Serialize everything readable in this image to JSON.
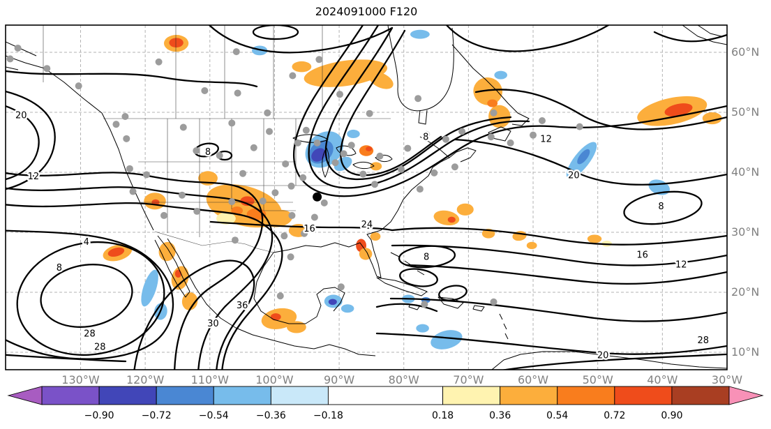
{
  "title": "2024091000 F120",
  "axes": {
    "x_ticks": [
      "130°W",
      "120°W",
      "110°W",
      "100°W",
      "90°W",
      "80°W",
      "70°W",
      "60°W",
      "50°W",
      "40°W",
      "30°W"
    ],
    "y_ticks": [
      "60°N",
      "50°N",
      "40°N",
      "30°N",
      "20°N",
      "10°N"
    ]
  },
  "colorbar": {
    "tick_labels": [
      "−0.90",
      "−0.72",
      "−0.54",
      "−0.36",
      "−0.18",
      "0.18",
      "0.36",
      "0.54",
      "0.72",
      "0.90"
    ],
    "colors": [
      "#A85CC1",
      "#7A52C8",
      "#4146B8",
      "#4A87D3",
      "#77BCEB",
      "#C9E8F9",
      "#FFFFFF",
      "#FFF3B0",
      "#FCAE3C",
      "#F97D1D",
      "#EF4C1B",
      "#A93E22",
      "#F891B7"
    ]
  },
  "chart_data": {
    "type": "contour-map",
    "title": "2024091000 F120",
    "region": "North America and western Atlantic",
    "x_axis": {
      "label": "longitude",
      "ticks_deg_west": [
        130,
        120,
        110,
        100,
        90,
        80,
        70,
        60,
        50,
        40,
        30
      ]
    },
    "y_axis": {
      "label": "latitude",
      "ticks_deg_north": [
        60,
        50,
        40,
        30,
        20,
        10
      ]
    },
    "lon_range": [
      -141.6,
      -30.0
    ],
    "lat_range": [
      7.1,
      64.53
    ],
    "grid": true,
    "legend_position": "bottom horizontal colorbar with arrow extensions",
    "contour_levels_labeled": [
      4,
      8,
      12,
      16,
      20,
      24,
      28,
      30,
      36
    ],
    "shading_boundaries": [
      -1.08,
      -0.9,
      -0.72,
      -0.54,
      -0.36,
      -0.18,
      0.18,
      0.36,
      0.54,
      0.72,
      0.9,
      1.08
    ],
    "contour_labels": [
      {
        "v": "20",
        "lon": -139.2,
        "lat": 49.5
      },
      {
        "v": "12",
        "lon": -137.3,
        "lat": 39.3
      },
      {
        "v": "4",
        "lon": -129.1,
        "lat": 28.4
      },
      {
        "v": "8",
        "lon": -133.3,
        "lat": 24.1
      },
      {
        "v": "28",
        "lon": -128.6,
        "lat": 13.1
      },
      {
        "v": "28",
        "lon": -127.0,
        "lat": 10.9
      },
      {
        "v": "8",
        "lon": -110.3,
        "lat": 43.4
      },
      {
        "v": "36",
        "lon": -105.0,
        "lat": 17.8
      },
      {
        "v": "30",
        "lon": -109.5,
        "lat": 14.8
      },
      {
        "v": "16",
        "lon": -94.6,
        "lat": 30.6
      },
      {
        "v": "24",
        "lon": -85.7,
        "lat": 31.3
      },
      {
        "v": "8",
        "lon": -76.5,
        "lat": 25.9
      },
      {
        "v": "8",
        "lon": -76.6,
        "lat": 45.9
      },
      {
        "v": "12",
        "lon": -58.0,
        "lat": 45.5
      },
      {
        "v": "20",
        "lon": -53.7,
        "lat": 39.5
      },
      {
        "v": "8",
        "lon": -40.2,
        "lat": 34.3
      },
      {
        "v": "16",
        "lon": -43.1,
        "lat": 26.2
      },
      {
        "v": "12",
        "lon": -37.1,
        "lat": 24.6
      },
      {
        "v": "20",
        "lon": -49.2,
        "lat": 9.5
      },
      {
        "v": "28",
        "lon": -33.7,
        "lat": 12.0
      }
    ],
    "stations_gray": [
      [
        -140.9,
        58.9
      ],
      [
        -139.7,
        60.7
      ],
      [
        -135.2,
        57.3
      ],
      [
        -130.3,
        54.4
      ],
      [
        -123.1,
        49.3
      ],
      [
        -124.5,
        48.0
      ],
      [
        -122.9,
        45.6
      ],
      [
        -122.4,
        40.6
      ],
      [
        -119.8,
        39.6
      ],
      [
        -121.9,
        36.8
      ],
      [
        -117.1,
        32.8
      ],
      [
        -114.3,
        36.2
      ],
      [
        -112.0,
        33.5
      ],
      [
        -106.6,
        35.1
      ],
      [
        -104.9,
        39.8
      ],
      [
        -108.5,
        42.8
      ],
      [
        -112.1,
        43.6
      ],
      [
        -114.1,
        47.5
      ],
      [
        -106.6,
        48.2
      ],
      [
        -110.8,
        53.6
      ],
      [
        -105.7,
        53.2
      ],
      [
        -101.1,
        49.9
      ],
      [
        -100.8,
        46.8
      ],
      [
        -103.2,
        44.1
      ],
      [
        -98.3,
        41.4
      ],
      [
        -96.4,
        44.9
      ],
      [
        -95.1,
        47.0
      ],
      [
        -97.4,
        37.7
      ],
      [
        -99.9,
        36.6
      ],
      [
        -101.8,
        35.2
      ],
      [
        -97.3,
        32.8
      ],
      [
        -98.5,
        29.4
      ],
      [
        -97.5,
        25.9
      ],
      [
        -93.8,
        32.5
      ],
      [
        -95.4,
        29.8
      ],
      [
        -92.3,
        34.9
      ],
      [
        -95.6,
        39.1
      ],
      [
        -93.4,
        44.9
      ],
      [
        -90.6,
        41.6
      ],
      [
        -89.3,
        43.1
      ],
      [
        -88.1,
        44.5
      ],
      [
        -86.3,
        39.7
      ],
      [
        -83.7,
        42.7
      ],
      [
        -84.5,
        38.0
      ],
      [
        -80.4,
        40.5
      ],
      [
        -79.4,
        44.0
      ],
      [
        -76.5,
        46.3
      ],
      [
        -73.5,
        45.5
      ],
      [
        -71.0,
        46.8
      ],
      [
        -66.5,
        45.9
      ],
      [
        -63.5,
        44.9
      ],
      [
        -60.0,
        46.2
      ],
      [
        -52.8,
        47.6
      ],
      [
        -58.6,
        48.6
      ],
      [
        -66.1,
        49.9
      ],
      [
        -77.8,
        52.3
      ],
      [
        -85.3,
        49.8
      ],
      [
        -89.9,
        53.0
      ],
      [
        -97.2,
        56.1
      ],
      [
        -93.1,
        58.8
      ],
      [
        -105.9,
        60.1
      ],
      [
        -117.9,
        58.4
      ],
      [
        -77.5,
        37.2
      ],
      [
        -75.3,
        39.9
      ],
      [
        -72.1,
        40.9
      ],
      [
        -106.1,
        28.7
      ],
      [
        -99.1,
        19.4
      ],
      [
        -89.7,
        20.9
      ],
      [
        -76.8,
        18.0
      ],
      [
        -66.1,
        18.4
      ]
    ],
    "station_black": [
      -93.4,
      35.9
    ],
    "anomaly_patches": [
      {
        "lon": -89.0,
        "lat": 56.5,
        "w": 13,
        "h": 4.2,
        "rot": -8,
        "c": 8
      },
      {
        "lon": -83.5,
        "lat": 55.3,
        "w": 4,
        "h": 2.4,
        "rot": 25,
        "c": 8
      },
      {
        "lon": -95.8,
        "lat": 57.6,
        "w": 3,
        "h": 1.8,
        "rot": 0,
        "c": 8
      },
      {
        "lon": -115.2,
        "lat": 61.5,
        "w": 3.8,
        "h": 2.8,
        "rot": 0,
        "c": 8
      },
      {
        "lon": -115.2,
        "lat": 61.6,
        "w": 2.2,
        "h": 1.6,
        "rot": 0,
        "c": 10
      },
      {
        "lon": -102.3,
        "lat": 60.3,
        "w": 2.4,
        "h": 1.6,
        "rot": 0,
        "c": 4
      },
      {
        "lon": -77.5,
        "lat": 63.0,
        "w": 3,
        "h": 1.5,
        "rot": 0,
        "c": 4
      },
      {
        "lon": -65.0,
        "lat": 56.2,
        "w": 2,
        "h": 1.4,
        "rot": 0,
        "c": 4
      },
      {
        "lon": -67.0,
        "lat": 53.5,
        "w": 4.5,
        "h": 4.6,
        "rot": 15,
        "c": 8
      },
      {
        "lon": -65.2,
        "lat": 49.3,
        "w": 3.4,
        "h": 3.8,
        "rot": -10,
        "c": 8
      },
      {
        "lon": -66.3,
        "lat": 51.5,
        "w": 1.6,
        "h": 1.3,
        "rot": 0,
        "c": 9
      },
      {
        "lon": -38.5,
        "lat": 50.2,
        "w": 11,
        "h": 4.4,
        "rot": -12,
        "c": 8
      },
      {
        "lon": -37.5,
        "lat": 50.4,
        "w": 4.4,
        "h": 2,
        "rot": -12,
        "c": 10
      },
      {
        "lon": -32.3,
        "lat": 49.0,
        "w": 3,
        "h": 2,
        "rot": 0,
        "c": 8
      },
      {
        "lon": -52.5,
        "lat": 42.0,
        "w": 2.4,
        "h": 7.5,
        "rot": 38,
        "c": 4
      },
      {
        "lon": -52.2,
        "lat": 42.6,
        "w": 1.2,
        "h": 3,
        "rot": 38,
        "c": 3
      },
      {
        "lon": -40.5,
        "lat": 37.5,
        "w": 3.4,
        "h": 2.4,
        "rot": 20,
        "c": 4
      },
      {
        "lon": -92.3,
        "lat": 43.8,
        "w": 6.4,
        "h": 5.4,
        "rot": -40,
        "c": 4
      },
      {
        "lon": -92.8,
        "lat": 43.4,
        "w": 4.2,
        "h": 3.4,
        "rot": -40,
        "c": 3
      },
      {
        "lon": -93.2,
        "lat": 42.9,
        "w": 2.4,
        "h": 2,
        "rot": -40,
        "c": 2
      },
      {
        "lon": -89.4,
        "lat": 41.4,
        "w": 3,
        "h": 2,
        "rot": -30,
        "c": 4
      },
      {
        "lon": -87.8,
        "lat": 46.4,
        "w": 2,
        "h": 1.4,
        "rot": 0,
        "c": 4
      },
      {
        "lon": -85.8,
        "lat": 43.6,
        "w": 2.2,
        "h": 1.8,
        "rot": 0,
        "c": 9
      },
      {
        "lon": -85.4,
        "lat": 43.9,
        "w": 1,
        "h": 0.8,
        "rot": 0,
        "c": 10
      },
      {
        "lon": -84.3,
        "lat": 41.0,
        "w": 1.8,
        "h": 1.4,
        "rot": 0,
        "c": 8
      },
      {
        "lon": -104.7,
        "lat": 34.4,
        "w": 12,
        "h": 6.6,
        "rot": 15,
        "c": 8
      },
      {
        "lon": -104.2,
        "lat": 35.2,
        "w": 2.2,
        "h": 1.6,
        "rot": 0,
        "c": 10
      },
      {
        "lon": -105.8,
        "lat": 33.6,
        "w": 1.8,
        "h": 1.4,
        "rot": 0,
        "c": 9
      },
      {
        "lon": -102.8,
        "lat": 33.0,
        "w": 3,
        "h": 2,
        "rot": 0,
        "c": 9
      },
      {
        "lon": -107.5,
        "lat": 32.3,
        "w": 3,
        "h": 2,
        "rot": 0,
        "c": 7
      },
      {
        "lon": -99.4,
        "lat": 32.3,
        "w": 4.4,
        "h": 2.8,
        "rot": -10,
        "c": 8
      },
      {
        "lon": -96.3,
        "lat": 30.3,
        "w": 3,
        "h": 2.2,
        "rot": 0,
        "c": 8
      },
      {
        "lon": -110.3,
        "lat": 39.0,
        "w": 3,
        "h": 2.4,
        "rot": 0,
        "c": 8
      },
      {
        "lon": -118.5,
        "lat": 35.2,
        "w": 3.4,
        "h": 2.8,
        "rot": 0,
        "c": 8
      },
      {
        "lon": -118.4,
        "lat": 35.0,
        "w": 1.2,
        "h": 1,
        "rot": 0,
        "c": 10
      },
      {
        "lon": -124.3,
        "lat": 26.6,
        "w": 4.6,
        "h": 2.6,
        "rot": -15,
        "c": 8
      },
      {
        "lon": -124.5,
        "lat": 26.7,
        "w": 2.6,
        "h": 1.4,
        "rot": -15,
        "c": 10
      },
      {
        "lon": -119.3,
        "lat": 20.7,
        "w": 2,
        "h": 6.4,
        "rot": 18,
        "c": 4
      },
      {
        "lon": -117.6,
        "lat": 16.8,
        "w": 2,
        "h": 2.8,
        "rot": 8,
        "c": 4
      },
      {
        "lon": -116.6,
        "lat": 26.8,
        "w": 2.6,
        "h": 3.2,
        "rot": 10,
        "c": 8
      },
      {
        "lon": -114.6,
        "lat": 22.4,
        "w": 2.6,
        "h": 4,
        "rot": 15,
        "c": 8
      },
      {
        "lon": -114.9,
        "lat": 23.1,
        "w": 1,
        "h": 1.3,
        "rot": 0,
        "c": 10
      },
      {
        "lon": -113.1,
        "lat": 18.5,
        "w": 2.4,
        "h": 3,
        "rot": 10,
        "c": 8
      },
      {
        "lon": -99.3,
        "lat": 15.6,
        "w": 5.5,
        "h": 3.4,
        "rot": -10,
        "c": 8
      },
      {
        "lon": -99.8,
        "lat": 15.9,
        "w": 1.6,
        "h": 1.2,
        "rot": 0,
        "c": 10
      },
      {
        "lon": -96.6,
        "lat": 14.2,
        "w": 3,
        "h": 2,
        "rot": 0,
        "c": 8
      },
      {
        "lon": -90.9,
        "lat": 18.5,
        "w": 2.8,
        "h": 2.2,
        "rot": 0,
        "c": 4
      },
      {
        "lon": -91.0,
        "lat": 18.4,
        "w": 1.3,
        "h": 1,
        "rot": 0,
        "c": 2
      },
      {
        "lon": -88.7,
        "lat": 17.3,
        "w": 2,
        "h": 1.4,
        "rot": 0,
        "c": 4
      },
      {
        "lon": -86.6,
        "lat": 27.8,
        "w": 1.6,
        "h": 2.2,
        "rot": 0,
        "c": 10
      },
      {
        "lon": -85.9,
        "lat": 26.4,
        "w": 2,
        "h": 2,
        "rot": 0,
        "c": 8
      },
      {
        "lon": -84.4,
        "lat": 29.3,
        "w": 1.6,
        "h": 1.4,
        "rot": 0,
        "c": 8
      },
      {
        "lon": -73.4,
        "lat": 32.4,
        "w": 4,
        "h": 2.4,
        "rot": 10,
        "c": 8
      },
      {
        "lon": -70.5,
        "lat": 33.8,
        "w": 2.6,
        "h": 2,
        "rot": 0,
        "c": 8
      },
      {
        "lon": -72.6,
        "lat": 32.1,
        "w": 1.2,
        "h": 1,
        "rot": 0,
        "c": 10
      },
      {
        "lon": -66.9,
        "lat": 29.8,
        "w": 2,
        "h": 1.6,
        "rot": 0,
        "c": 8
      },
      {
        "lon": -62.1,
        "lat": 29.4,
        "w": 2.2,
        "h": 1.6,
        "rot": -10,
        "c": 8
      },
      {
        "lon": -60.2,
        "lat": 27.8,
        "w": 1.6,
        "h": 1.2,
        "rot": 0,
        "c": 8
      },
      {
        "lon": -50.5,
        "lat": 28.9,
        "w": 2.2,
        "h": 1.4,
        "rot": 0,
        "c": 8
      },
      {
        "lon": -48.6,
        "lat": 28.1,
        "w": 1.6,
        "h": 1,
        "rot": 0,
        "c": 7
      },
      {
        "lon": -79.3,
        "lat": 18.9,
        "w": 2,
        "h": 1.4,
        "rot": 0,
        "c": 4
      },
      {
        "lon": -76.6,
        "lat": 18.7,
        "w": 1.4,
        "h": 1,
        "rot": 0,
        "c": 3
      },
      {
        "lon": -73.4,
        "lat": 12.1,
        "w": 5,
        "h": 3,
        "rot": -15,
        "c": 4
      },
      {
        "lon": -77.1,
        "lat": 14.0,
        "w": 2,
        "h": 1.4,
        "rot": 0,
        "c": 4
      }
    ]
  }
}
